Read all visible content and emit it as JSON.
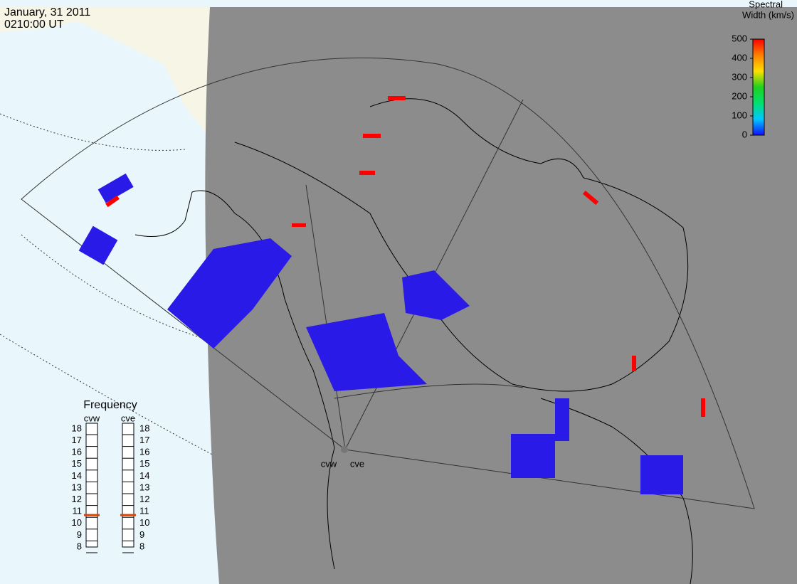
{
  "header": {
    "date": "January, 31 2011",
    "time": "0210:00 UT"
  },
  "colorbar": {
    "title_line1": "Spectral",
    "title_line2": "Width (km/s)",
    "range": [
      0,
      500
    ],
    "ticks": [
      0,
      100,
      200,
      300,
      400,
      500
    ],
    "colors": [
      "#1010ff",
      "#00c8ff",
      "#00e070",
      "#20d020",
      "#ffe000",
      "#ff8000",
      "#ff0000"
    ]
  },
  "frequency": {
    "title": "Frequency",
    "range": [
      8,
      18
    ],
    "ticks": [
      8,
      9,
      10,
      11,
      12,
      13,
      14,
      15,
      16,
      17,
      18
    ],
    "marker_color": "#e04000",
    "radars": [
      {
        "name": "cvw",
        "value": 10.7
      },
      {
        "name": "cve",
        "value": 10.7
      }
    ]
  },
  "stations": [
    {
      "label": "cvw"
    },
    {
      "label": "cve"
    }
  ]
}
